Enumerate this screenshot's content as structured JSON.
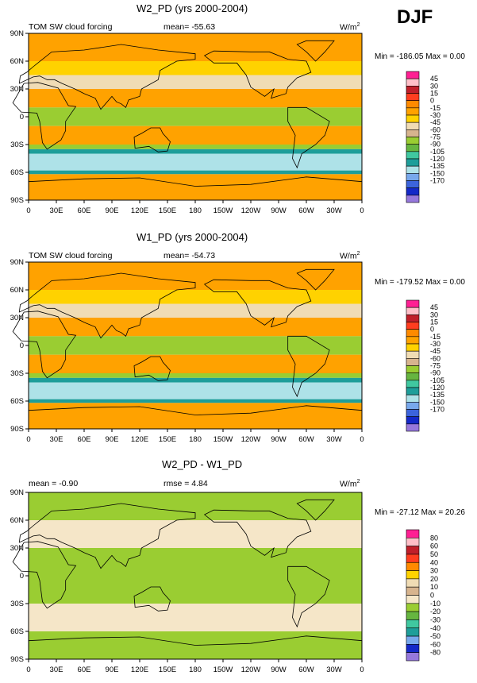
{
  "season": "DJF",
  "x_ticks": [
    "0",
    "30E",
    "60E",
    "90E",
    "120E",
    "150E",
    "180",
    "150W",
    "120W",
    "90W",
    "60W",
    "30W",
    "0"
  ],
  "y_ticks": [
    "90N",
    "60N",
    "30N",
    "0",
    "30S",
    "60S",
    "90S"
  ],
  "panels": [
    {
      "title": "W2_PD (yrs 2000-2004)",
      "left_label": "TOM SW cloud forcing",
      "center_label": "mean= -55.63",
      "units": "W/m",
      "units_sup": "2",
      "minmax": "Min = -186.05 Max =   0.00",
      "colorbar": {
        "labels": [
          "45",
          "30",
          "15",
          "0",
          "-15",
          "-30",
          "-45",
          "-60",
          "-75",
          "-90",
          "-105",
          "-120",
          "-135",
          "-150",
          "-170"
        ],
        "colors": [
          "#ff1f93",
          "#ffbfc8",
          "#c01f2a",
          "#ff3d1f",
          "#ff8a00",
          "#ffa200",
          "#ffd200",
          "#f0dcb4",
          "#d7b48e",
          "#9acd32",
          "#66b540",
          "#40c8a0",
          "#1e9e9a",
          "#aee2e8",
          "#78a8ec",
          "#3c64dc",
          "#1428c8",
          "#9678dc"
        ]
      },
      "map_data": {
        "bands": [
          {
            "lat_range": [
              90,
              60
            ],
            "color": "#ffa200"
          },
          {
            "lat_range": [
              60,
              45
            ],
            "color": "#ffd200"
          },
          {
            "lat_range": [
              45,
              30
            ],
            "color": "#f0dcb4"
          },
          {
            "lat_range": [
              30,
              10
            ],
            "color": "#ffa200"
          },
          {
            "lat_range": [
              10,
              -10
            ],
            "color": "#9acd32"
          },
          {
            "lat_range": [
              -10,
              -30
            ],
            "color": "#ffa200"
          },
          {
            "lat_range": [
              -30,
              -35
            ],
            "color": "#9acd32"
          },
          {
            "lat_range": [
              -35,
              -40
            ],
            "color": "#1e9e9a"
          },
          {
            "lat_range": [
              -40,
              -58
            ],
            "color": "#aee2e8"
          },
          {
            "lat_range": [
              -58,
              -62
            ],
            "color": "#1e9e9a"
          },
          {
            "lat_range": [
              -62,
              -90
            ],
            "color": "#ffa200"
          }
        ]
      }
    },
    {
      "title": "W1_PD (yrs 2000-2004)",
      "left_label": "TOM SW cloud forcing",
      "center_label": "mean= -54.73",
      "units": "W/m",
      "units_sup": "2",
      "minmax": "Min = -179.52 Max =   0.00",
      "colorbar": {
        "labels": [
          "45",
          "30",
          "15",
          "0",
          "-15",
          "-30",
          "-45",
          "-60",
          "-75",
          "-90",
          "-105",
          "-120",
          "-135",
          "-150",
          "-170"
        ],
        "colors": [
          "#ff1f93",
          "#ffbfc8",
          "#c01f2a",
          "#ff3d1f",
          "#ff8a00",
          "#ffa200",
          "#ffd200",
          "#f0dcb4",
          "#d7b48e",
          "#9acd32",
          "#66b540",
          "#40c8a0",
          "#1e9e9a",
          "#aee2e8",
          "#78a8ec",
          "#3c64dc",
          "#1428c8",
          "#9678dc"
        ]
      },
      "map_data": {
        "bands": [
          {
            "lat_range": [
              90,
              60
            ],
            "color": "#ffa200"
          },
          {
            "lat_range": [
              60,
              45
            ],
            "color": "#ffd200"
          },
          {
            "lat_range": [
              45,
              30
            ],
            "color": "#f0dcb4"
          },
          {
            "lat_range": [
              30,
              10
            ],
            "color": "#ffa200"
          },
          {
            "lat_range": [
              10,
              -10
            ],
            "color": "#9acd32"
          },
          {
            "lat_range": [
              -10,
              -30
            ],
            "color": "#ffa200"
          },
          {
            "lat_range": [
              -30,
              -35
            ],
            "color": "#9acd32"
          },
          {
            "lat_range": [
              -35,
              -40
            ],
            "color": "#1e9e9a"
          },
          {
            "lat_range": [
              -40,
              -58
            ],
            "color": "#aee2e8"
          },
          {
            "lat_range": [
              -58,
              -62
            ],
            "color": "#1e9e9a"
          },
          {
            "lat_range": [
              -62,
              -90
            ],
            "color": "#ffa200"
          }
        ]
      }
    },
    {
      "title": "W2_PD - W1_PD",
      "left_label": "mean =  -0.90",
      "center_label": "rmse =   4.84",
      "units": "W/m",
      "units_sup": "2",
      "minmax": "Min = -27.12 Max =  20.26",
      "colorbar": {
        "labels": [
          "80",
          "60",
          "50",
          "40",
          "30",
          "20",
          "10",
          "0",
          "-10",
          "-20",
          "-30",
          "-40",
          "-50",
          "-60",
          "-80"
        ],
        "colors": [
          "#ff1f93",
          "#ffbfc8",
          "#c01f2a",
          "#ff3d1f",
          "#ff8a00",
          "#ffd200",
          "#f0dcb4",
          "#d7b48e",
          "#f5e6c8",
          "#9acd32",
          "#66b540",
          "#40c8a0",
          "#1e9e9a",
          "#78a8ec",
          "#1428c8",
          "#9678dc"
        ]
      },
      "map_data": {
        "bands": [
          {
            "lat_range": [
              90,
              60
            ],
            "color": "#9acd32"
          },
          {
            "lat_range": [
              60,
              30
            ],
            "color": "#f5e6c8"
          },
          {
            "lat_range": [
              30,
              -30
            ],
            "color": "#9acd32"
          },
          {
            "lat_range": [
              -30,
              -60
            ],
            "color": "#f5e6c8"
          },
          {
            "lat_range": [
              -60,
              -90
            ],
            "color": "#9acd32"
          }
        ]
      }
    }
  ]
}
